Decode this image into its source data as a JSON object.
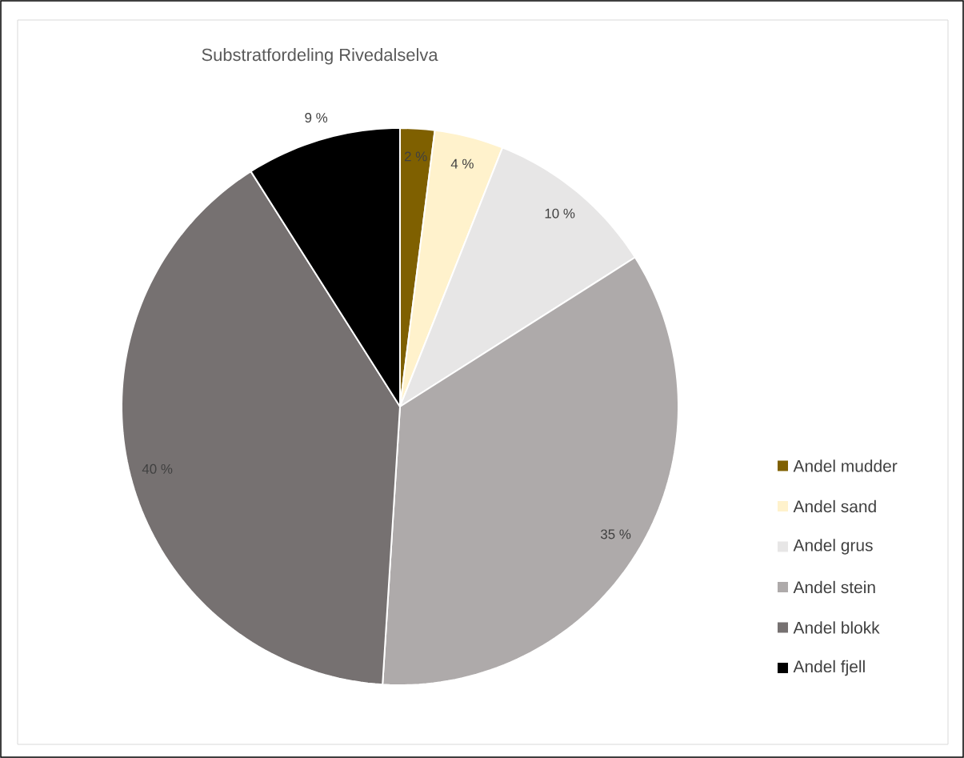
{
  "chart_data": {
    "type": "pie",
    "title": "Substratfordeling Rivedalselva",
    "categories": [
      "Andel mudder",
      "Andel sand",
      "Andel grus",
      "Andel stein",
      "Andel blokk",
      "Andel fjell"
    ],
    "values": [
      2,
      4,
      10,
      35,
      40,
      9
    ],
    "colors": [
      "#7f6000",
      "#fff2cc",
      "#e7e6e6",
      "#aeaaaa",
      "#767171",
      "#000000"
    ],
    "value_labels": [
      "2 %",
      "4 %",
      "10 %",
      "35 %",
      "40 %",
      "9 %"
    ],
    "legend": "right"
  }
}
